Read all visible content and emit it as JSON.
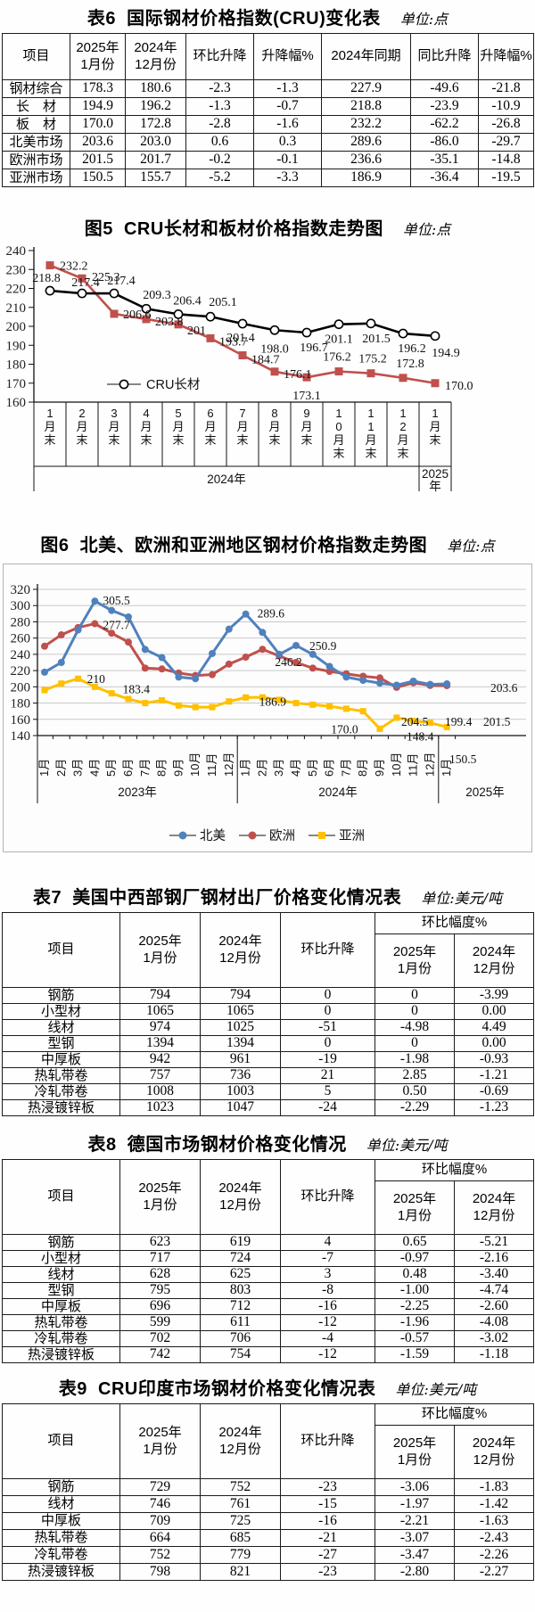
{
  "table6": {
    "title": "表6  国际钢材价格指数(CRU)变化表",
    "unit": "单位:点",
    "headers": [
      "项目",
      "2025年\n1月份",
      "2024年\n12月份",
      "环比升降",
      "升降幅%",
      "2024年同期",
      "同比升降",
      "升降幅%"
    ],
    "rows": [
      [
        "钢材综合",
        "178.3",
        "180.6",
        "-2.3",
        "-1.3",
        "227.9",
        "-49.6",
        "-21.8"
      ],
      [
        "长　材",
        "194.9",
        "196.2",
        "-1.3",
        "-0.7",
        "218.8",
        "-23.9",
        "-10.9"
      ],
      [
        "板　材",
        "170.0",
        "172.8",
        "-2.8",
        "-1.6",
        "232.2",
        "-62.2",
        "-26.8"
      ],
      [
        "北美市场",
        "203.6",
        "203.0",
        "0.6",
        "0.3",
        "289.6",
        "-86.0",
        "-29.7"
      ],
      [
        "欧洲市场",
        "201.5",
        "201.7",
        "-0.2",
        "-0.1",
        "236.6",
        "-35.1",
        "-14.8"
      ],
      [
        "亚洲市场",
        "150.5",
        "155.7",
        "-5.2",
        "-3.3",
        "186.9",
        "-36.4",
        "-19.5"
      ]
    ]
  },
  "figure5": {
    "title": "图5  CRU长材和板材价格指数走势图",
    "unit": "单位:点"
  },
  "figure6": {
    "title": "图6  北美、欧洲和亚洲地区钢材价格指数走势图",
    "unit": "单位:点"
  },
  "table7": {
    "title": "表7  美国中西部钢厂钢材出厂价格变化情况表",
    "unit": "单位:美元/吨",
    "header": {
      "main": [
        "项目",
        "2025年\n1月份",
        "2024年\n12月份",
        "环比升降"
      ],
      "group": "环比幅度%",
      "sub": [
        "2025年\n1月份",
        "2024年\n12月份"
      ]
    },
    "rows": [
      [
        "钢筋",
        "794",
        "794",
        "0",
        "0",
        "-3.99"
      ],
      [
        "小型材",
        "1065",
        "1065",
        "0",
        "0",
        "0.00"
      ],
      [
        "线材",
        "974",
        "1025",
        "-51",
        "-4.98",
        "4.49"
      ],
      [
        "型钢",
        "1394",
        "1394",
        "0",
        "0",
        "0.00"
      ],
      [
        "中厚板",
        "942",
        "961",
        "-19",
        "-1.98",
        "-0.93"
      ],
      [
        "热轧带卷",
        "757",
        "736",
        "21",
        "2.85",
        "-1.21"
      ],
      [
        "冷轧带卷",
        "1008",
        "1003",
        "5",
        "0.50",
        "-0.69"
      ],
      [
        "热浸镀锌板",
        "1023",
        "1047",
        "-24",
        "-2.29",
        "-1.23"
      ]
    ]
  },
  "table8": {
    "title": "表8  德国市场钢材价格变化情况",
    "unit": "单位:美元/吨",
    "header": {
      "main": [
        "项目",
        "2025年\n1月份",
        "2024年\n12月份",
        "环比升降"
      ],
      "group": "环比幅度%",
      "sub": [
        "2025年\n1月份",
        "2024年\n12月份"
      ]
    },
    "rows": [
      [
        "钢筋",
        "623",
        "619",
        "4",
        "0.65",
        "-5.21"
      ],
      [
        "小型材",
        "717",
        "724",
        "-7",
        "-0.97",
        "-2.16"
      ],
      [
        "线材",
        "628",
        "625",
        "3",
        "0.48",
        "-3.40"
      ],
      [
        "型钢",
        "795",
        "803",
        "-8",
        "-1.00",
        "-4.74"
      ],
      [
        "中厚板",
        "696",
        "712",
        "-16",
        "-2.25",
        "-2.60"
      ],
      [
        "热轧带卷",
        "599",
        "611",
        "-12",
        "-1.96",
        "-4.08"
      ],
      [
        "冷轧带卷",
        "702",
        "706",
        "-4",
        "-0.57",
        "-3.02"
      ],
      [
        "热浸镀锌板",
        "742",
        "754",
        "-12",
        "-1.59",
        "-1.18"
      ]
    ]
  },
  "table9": {
    "title": "表9  CRU印度市场钢材价格变化情况表",
    "unit": "单位:美元/吨",
    "header": {
      "main": [
        "项目",
        "2025年\n1月份",
        "2024年\n12月份",
        "环比升降"
      ],
      "group": "环比幅度%",
      "sub": [
        "2025年\n1月份",
        "2024年\n12月份"
      ]
    },
    "rows": [
      [
        "钢筋",
        "729",
        "752",
        "-23",
        "-3.06",
        "-1.83"
      ],
      [
        "线材",
        "746",
        "761",
        "-15",
        "-1.97",
        "-1.42"
      ],
      [
        "中厚板",
        "709",
        "725",
        "-16",
        "-2.21",
        "-1.63"
      ],
      [
        "热轧带卷",
        "664",
        "685",
        "-21",
        "-3.07",
        "-2.43"
      ],
      [
        "冷轧带卷",
        "752",
        "779",
        "-27",
        "-3.47",
        "-2.26"
      ],
      [
        "热浸镀锌板",
        "798",
        "821",
        "-23",
        "-2.80",
        "-2.27"
      ]
    ]
  },
  "chart_data": [
    {
      "id": "figure5",
      "type": "line",
      "title": "图5 CRU长材和板材价格指数走势图",
      "unit": "单位:点",
      "categories": [
        "1月末",
        "2月末",
        "3月末",
        "4月末",
        "5月末",
        "6月末",
        "7月末",
        "8月末",
        "9月末",
        "10月末",
        "11月末",
        "12月末",
        "1月末"
      ],
      "year_groups": [
        {
          "label": "2024年",
          "span": 12
        },
        {
          "label": "2025年",
          "span": 1
        }
      ],
      "ylim": [
        160,
        240
      ],
      "ytick_step": 10,
      "grid": false,
      "legend_position": "inside-left",
      "series": [
        {
          "name": "CRU长材",
          "color": "#000000",
          "marker": "open-circle",
          "in_legend": true,
          "values": [
            218.8,
            217.4,
            217.4,
            209.3,
            206.4,
            205.1,
            201.4,
            198.0,
            196.7,
            201.1,
            201.5,
            196.2,
            194.9
          ],
          "point_labels": [
            "218.8",
            "217.4",
            "217.4",
            "209.3",
            "206.4",
            "205.1",
            "201.4",
            "198.0",
            "196.7",
            "201.1",
            "201.5",
            "196.2",
            "194.9"
          ]
        },
        {
          "name": "CRU板材",
          "color": "#c0504d",
          "marker": "square",
          "in_legend": false,
          "values": [
            232.2,
            225.3,
            206.6,
            203.8,
            201,
            193.7,
            184.7,
            176.1,
            173.1,
            176.2,
            175.2,
            172.8,
            170.0
          ],
          "point_labels": [
            "232.2",
            "225.3",
            "206.6",
            "203.8",
            "201",
            "193.7",
            "184.7",
            "176.1",
            "173.1",
            "176.2",
            "175.2",
            "172.8",
            "170.0"
          ]
        }
      ]
    },
    {
      "id": "figure6",
      "type": "line",
      "title": "图6 北美、欧洲和亚洲地区钢材价格指数走势图",
      "unit": "单位:点",
      "categories": [
        "1月",
        "2月",
        "3月",
        "4月",
        "5月",
        "6月",
        "7月",
        "8月",
        "9月",
        "10月",
        "11月",
        "12月",
        "1月",
        "2月",
        "3月",
        "4月",
        "5月",
        "6月",
        "7月",
        "8月",
        "9月",
        "10月",
        "11月",
        "12月",
        "1月"
      ],
      "year_groups": [
        {
          "label": "2023年",
          "span": 12
        },
        {
          "label": "2024年",
          "span": 12
        },
        {
          "label": "2025年",
          "span": 1
        }
      ],
      "ylim": [
        140,
        320
      ],
      "ytick_step": 20,
      "grid": true,
      "legend_position": "bottom",
      "series": [
        {
          "name": "北美",
          "color": "#4f81bd",
          "marker": "circle",
          "values": [
            218,
            230,
            270,
            305.5,
            294,
            286,
            246,
            236,
            212,
            210,
            241,
            271,
            289.6,
            267,
            240,
            250.9,
            240,
            225,
            212,
            208,
            204.5,
            202,
            207,
            203,
            203.6
          ]
        },
        {
          "name": "欧洲",
          "color": "#c0504d",
          "marker": "circle",
          "values": [
            250,
            264,
            273,
            277.7,
            266,
            255,
            223,
            222,
            217,
            214,
            215,
            228,
            236.6,
            246.2,
            238,
            230,
            223,
            219,
            216,
            213,
            211,
            199.4,
            205,
            201.7,
            201.5
          ]
        },
        {
          "name": "亚洲",
          "color": "#ffc000",
          "marker": "square",
          "values": [
            196,
            204,
            210,
            200,
            192,
            185,
            180,
            183.4,
            177,
            175,
            175,
            182,
            186.9,
            187,
            184,
            180,
            178,
            176,
            173,
            170,
            148.4,
            162,
            158,
            155.7,
            150.5
          ]
        }
      ],
      "point_labels": [
        {
          "series": 0,
          "index": 3,
          "text": "305.5"
        },
        {
          "series": 1,
          "index": 3,
          "text": "277.7"
        },
        {
          "series": 2,
          "index": 2,
          "text": "210"
        },
        {
          "series": 2,
          "index": 7,
          "text": "183.4"
        },
        {
          "series": 0,
          "index": 12,
          "text": "289.6"
        },
        {
          "series": 1,
          "index": 13,
          "text": "246.2"
        },
        {
          "series": 0,
          "index": 15,
          "text": "250.9"
        },
        {
          "series": 2,
          "index": 12,
          "text": "186.9"
        },
        {
          "series": 2,
          "index": 19,
          "text": "170.0"
        },
        {
          "series": 2,
          "index": 20,
          "text": "148.4"
        },
        {
          "series": 0,
          "index": 20,
          "text": "204.5"
        },
        {
          "series": 1,
          "index": 21,
          "text": "199.4"
        },
        {
          "series": 0,
          "index": 24,
          "text": "203.6"
        },
        {
          "series": 1,
          "index": 24,
          "text": "201.5"
        },
        {
          "series": 2,
          "index": 24,
          "text": "150.5"
        }
      ]
    }
  ]
}
